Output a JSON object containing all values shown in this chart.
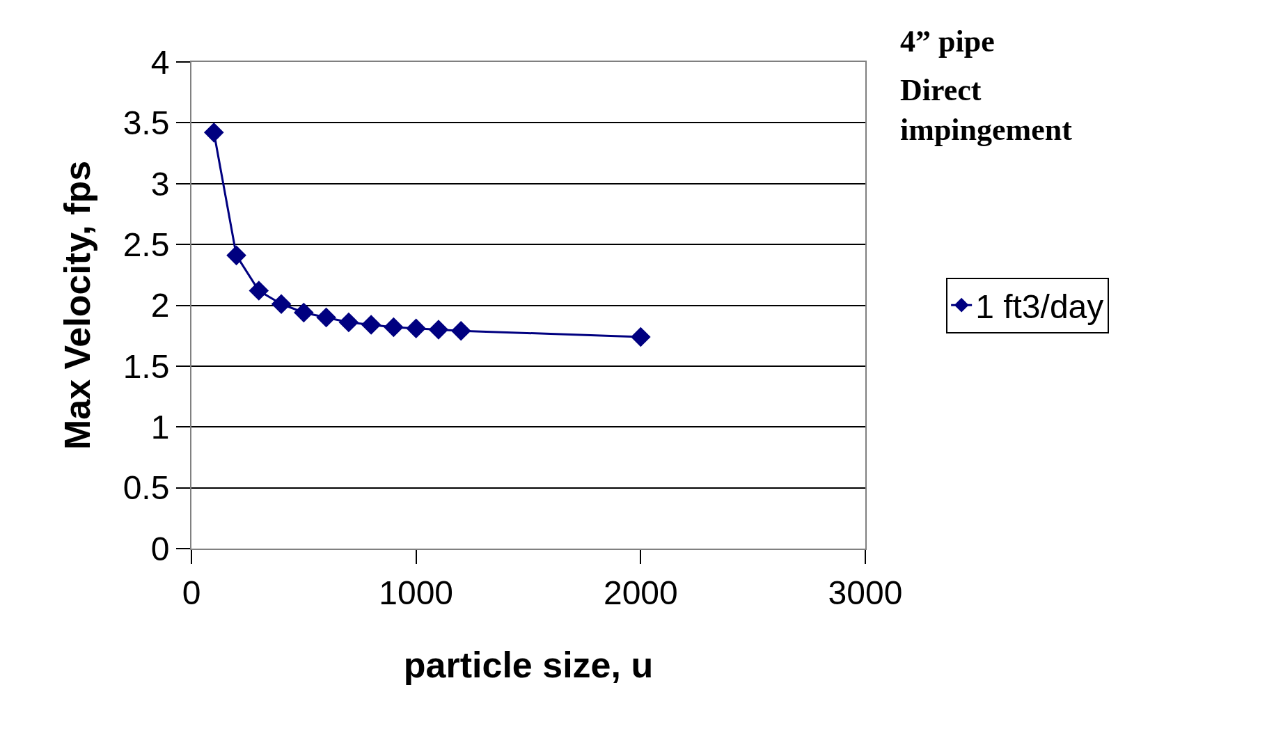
{
  "chart_data": {
    "type": "line",
    "xlabel": "particle size, u",
    "ylabel": "Max Velocity, fps",
    "annotations": [
      "4” pipe",
      "Direct\nimpingement"
    ],
    "x": [
      100,
      200,
      300,
      400,
      500,
      600,
      700,
      800,
      900,
      1000,
      1100,
      1200,
      2000
    ],
    "series": [
      {
        "name": "1 ft3/day",
        "color": "#000080",
        "values": [
          3.42,
          2.41,
          2.12,
          2.01,
          1.94,
          1.9,
          1.86,
          1.84,
          1.82,
          1.81,
          1.8,
          1.79,
          1.74
        ]
      }
    ],
    "xlim": [
      0,
      3000
    ],
    "xticks": [
      0,
      1000,
      2000,
      3000
    ],
    "ylim": [
      0,
      4
    ],
    "yticks": [
      0,
      0.5,
      1,
      1.5,
      2,
      2.5,
      3,
      3.5,
      4
    ],
    "grid": "y",
    "legend": "right",
    "marker": "diamond",
    "line_style": "solid"
  }
}
